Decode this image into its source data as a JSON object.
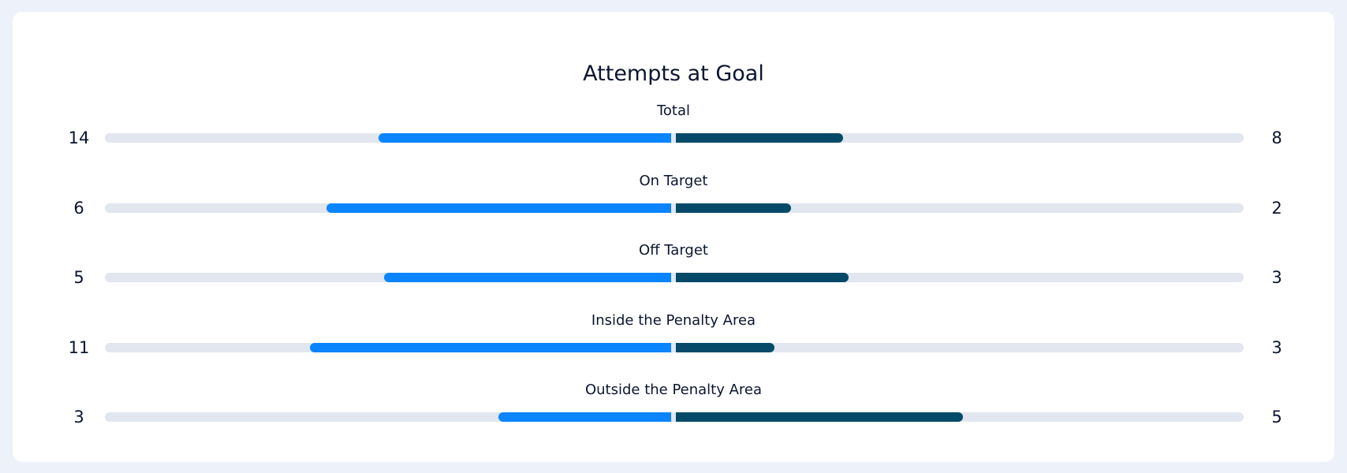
{
  "colors": {
    "page_background": "#edf1f9",
    "card_background": "#ffffff",
    "home": "#0a84ff",
    "away": "#044a68",
    "track": "#e1e6ef",
    "text": "#0b1530"
  },
  "chart_data": {
    "type": "bar",
    "orientation": "horizontal-diverging",
    "title": "Attempts at Goal",
    "categories": [
      "Total",
      "On Target",
      "Off Target",
      "Inside the Penalty Area",
      "Outside the Penalty Area"
    ],
    "series": [
      {
        "values": [
          14,
          6,
          5,
          11,
          3
        ],
        "color": "#0a84ff"
      },
      {
        "values": [
          8,
          2,
          3,
          3,
          5
        ],
        "color": "#044a68"
      }
    ],
    "grid": false,
    "legend": "none"
  }
}
